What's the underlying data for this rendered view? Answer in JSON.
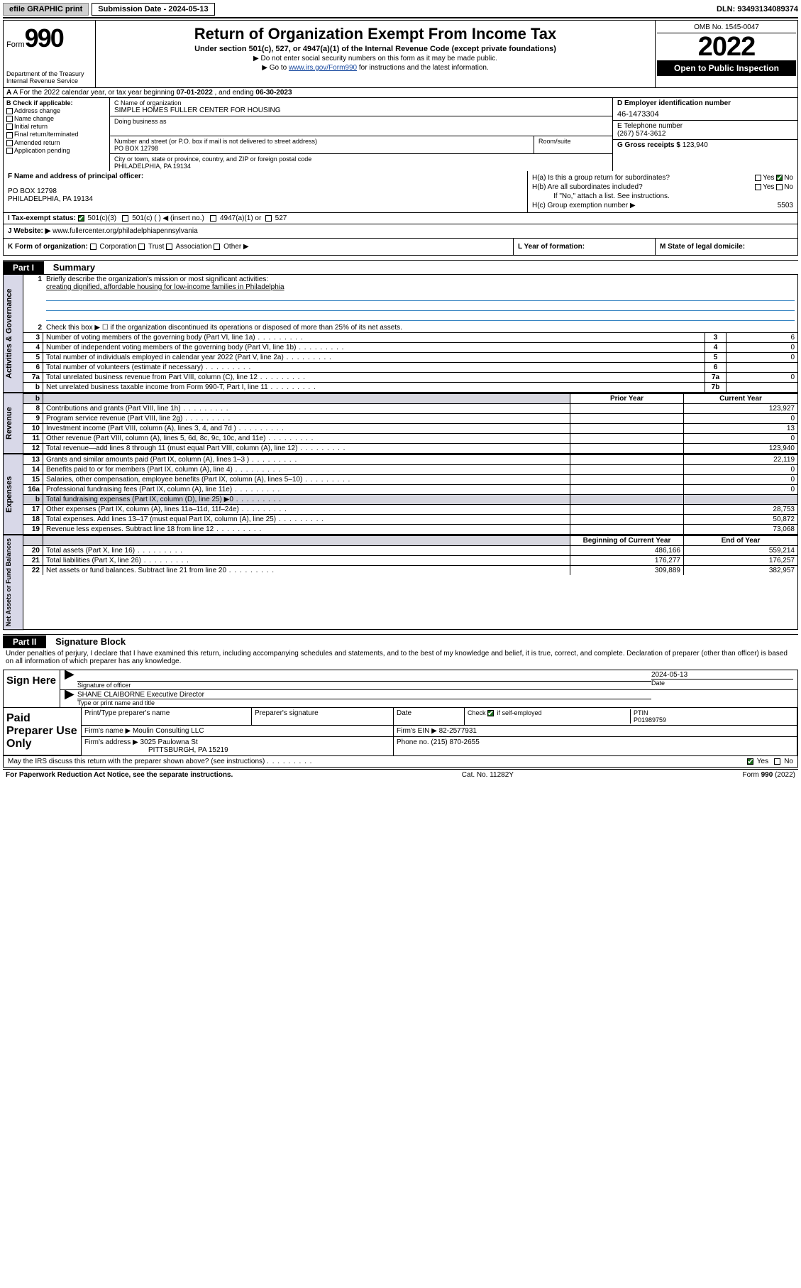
{
  "topbar": {
    "efile": "efile GRAPHIC print",
    "subdate_label": "Submission Date - ",
    "subdate": "2024-05-13",
    "dln_label": "DLN: ",
    "dln": "93493134089374"
  },
  "header": {
    "form_word": "Form",
    "form_num": "990",
    "dept": "Department of the Treasury",
    "irs": "Internal Revenue Service",
    "title": "Return of Organization Exempt From Income Tax",
    "sub": "Under section 501(c), 527, or 4947(a)(1) of the Internal Revenue Code (except private foundations)",
    "note1": "▶ Do not enter social security numbers on this form as it may be made public.",
    "note2_pre": "▶ Go to ",
    "note2_link": "www.irs.gov/Form990",
    "note2_post": " for instructions and the latest information.",
    "omb": "OMB No. 1545-0047",
    "year": "2022",
    "open": "Open to Public Inspection"
  },
  "rowA": {
    "text_pre": "A For the 2022 calendar year, or tax year beginning ",
    "begin": "07-01-2022",
    "mid": "   , and ending ",
    "end": "06-30-2023"
  },
  "colB": {
    "title": "B Check if applicable:",
    "items": [
      "Address change",
      "Name change",
      "Initial return",
      "Final return/terminated",
      "Amended return",
      "Application pending"
    ]
  },
  "colC": {
    "name_label": "C Name of organization",
    "name": "SIMPLE HOMES FULLER CENTER FOR HOUSING",
    "dba_label": "Doing business as",
    "street_label": "Number and street (or P.O. box if mail is not delivered to street address)",
    "street": "PO BOX 12798",
    "room_label": "Room/suite",
    "city_label": "City or town, state or province, country, and ZIP or foreign postal code",
    "city": "PHILADELPHIA, PA  19134"
  },
  "colD": {
    "ein_label": "D Employer identification number",
    "ein": "46-1473304",
    "tel_label": "E Telephone number",
    "tel": "(267) 574-3612",
    "gross_label": "G Gross receipts $ ",
    "gross": "123,940"
  },
  "rowF": {
    "label": "F Name and address of principal officer:",
    "addr1": "PO BOX 12798",
    "addr2": "PHILADELPHIA, PA  19134"
  },
  "rowH": {
    "ha": "H(a)  Is this a group return for subordinates?",
    "hb": "H(b)  Are all subordinates included?",
    "hb_note": "If \"No,\" attach a list. See instructions.",
    "hc": "H(c)  Group exemption number ▶",
    "hc_val": "5503",
    "yes": "Yes",
    "no": "No"
  },
  "rowI": {
    "label": "I    Tax-exempt status:",
    "opt1": "501(c)(3)",
    "opt2": "501(c) (   ) ◀ (insert no.)",
    "opt3": "4947(a)(1) or",
    "opt4": "527"
  },
  "rowJ": {
    "label": "J    Website: ▶",
    "url": "www.fullercenter.org/philadelphiapennsylvania"
  },
  "rowK": {
    "label": "K Form of organization:",
    "opts": [
      "Corporation",
      "Trust",
      "Association",
      "Other ▶"
    ]
  },
  "rowL": {
    "label": "L Year of formation:"
  },
  "rowM": {
    "label": "M State of legal domicile:"
  },
  "partI": {
    "hdr": "Part I",
    "title": "Summary",
    "l1_label": "Briefly describe the organization's mission or most significant activities:",
    "l1_text": "creating dignified, affordable housing for low-income families in Philadelphia",
    "l2": "Check this box ▶ ☐  if the organization discontinued its operations or disposed of more than 25% of its net assets.",
    "lines_gov": [
      {
        "n": "3",
        "d": "Number of voting members of the governing body (Part VI, line 1a)",
        "box": "3",
        "v": "6"
      },
      {
        "n": "4",
        "d": "Number of independent voting members of the governing body (Part VI, line 1b)",
        "box": "4",
        "v": "0"
      },
      {
        "n": "5",
        "d": "Total number of individuals employed in calendar year 2022 (Part V, line 2a)",
        "box": "5",
        "v": "0"
      },
      {
        "n": "6",
        "d": "Total number of volunteers (estimate if necessary)",
        "box": "6",
        "v": ""
      },
      {
        "n": "7a",
        "d": "Total unrelated business revenue from Part VIII, column (C), line 12",
        "box": "7a",
        "v": "0"
      },
      {
        "n": "b",
        "d": "Net unrelated business taxable income from Form 990-T, Part I, line 11",
        "box": "7b",
        "v": ""
      }
    ],
    "col_prior": "Prior Year",
    "col_curr": "Current Year",
    "revenue": [
      {
        "n": "8",
        "d": "Contributions and grants (Part VIII, line 1h)",
        "p": "",
        "c": "123,927"
      },
      {
        "n": "9",
        "d": "Program service revenue (Part VIII, line 2g)",
        "p": "",
        "c": "0"
      },
      {
        "n": "10",
        "d": "Investment income (Part VIII, column (A), lines 3, 4, and 7d )",
        "p": "",
        "c": "13"
      },
      {
        "n": "11",
        "d": "Other revenue (Part VIII, column (A), lines 5, 6d, 8c, 9c, 10c, and 11e)",
        "p": "",
        "c": "0"
      },
      {
        "n": "12",
        "d": "Total revenue—add lines 8 through 11 (must equal Part VIII, column (A), line 12)",
        "p": "",
        "c": "123,940"
      }
    ],
    "expenses": [
      {
        "n": "13",
        "d": "Grants and similar amounts paid (Part IX, column (A), lines 1–3 )",
        "p": "",
        "c": "22,119"
      },
      {
        "n": "14",
        "d": "Benefits paid to or for members (Part IX, column (A), line 4)",
        "p": "",
        "c": "0"
      },
      {
        "n": "15",
        "d": "Salaries, other compensation, employee benefits (Part IX, column (A), lines 5–10)",
        "p": "",
        "c": "0"
      },
      {
        "n": "16a",
        "d": "Professional fundraising fees (Part IX, column (A), line 11e)",
        "p": "",
        "c": "0"
      },
      {
        "n": "b",
        "d": "Total fundraising expenses (Part IX, column (D), line 25) ▶0",
        "p": "—",
        "c": "—"
      },
      {
        "n": "17",
        "d": "Other expenses (Part IX, column (A), lines 11a–11d, 11f–24e)",
        "p": "",
        "c": "28,753"
      },
      {
        "n": "18",
        "d": "Total expenses. Add lines 13–17 (must equal Part IX, column (A), line 25)",
        "p": "",
        "c": "50,872"
      },
      {
        "n": "19",
        "d": "Revenue less expenses. Subtract line 18 from line 12",
        "p": "",
        "c": "73,068"
      }
    ],
    "col_begin": "Beginning of Current Year",
    "col_end": "End of Year",
    "netassets": [
      {
        "n": "20",
        "d": "Total assets (Part X, line 16)",
        "p": "486,166",
        "c": "559,214"
      },
      {
        "n": "21",
        "d": "Total liabilities (Part X, line 26)",
        "p": "176,277",
        "c": "176,257"
      },
      {
        "n": "22",
        "d": "Net assets or fund balances. Subtract line 21 from line 20",
        "p": "309,889",
        "c": "382,957"
      }
    ]
  },
  "partII": {
    "hdr": "Part II",
    "title": "Signature Block",
    "decl": "Under penalties of perjury, I declare that I have examined this return, including accompanying schedules and statements, and to the best of my knowledge and belief, it is true, correct, and complete. Declaration of preparer (other than officer) is based on all information of which preparer has any knowledge.",
    "sign_here": "Sign Here",
    "sig_officer": "Signature of officer",
    "sig_date_label": "Date",
    "sig_date": "2024-05-13",
    "officer_name": "SHANE CLAIBORNE  Executive Director",
    "officer_sub": "Type or print name and title",
    "paid": "Paid Preparer Use Only",
    "p_name_label": "Print/Type preparer's name",
    "p_sig_label": "Preparer's signature",
    "p_date_label": "Date",
    "p_check": "Check ☑ if self-employed",
    "p_ptin_label": "PTIN",
    "p_ptin": "P01989759",
    "firm_name_label": "Firm's name    ▶",
    "firm_name": "Moulin Consulting LLC",
    "firm_ein_label": "Firm's EIN ▶",
    "firm_ein": "82-2577931",
    "firm_addr_label": "Firm's address ▶",
    "firm_addr1": "3025 Paulowna St",
    "firm_addr2": "PITTSBURGH, PA  15219",
    "firm_phone_label": "Phone no.",
    "firm_phone": "(215) 870-2655",
    "discuss": "May the IRS discuss this return with the preparer shown above? (see instructions)",
    "yes": "Yes",
    "no": "No"
  },
  "footer": {
    "left": "For Paperwork Reduction Act Notice, see the separate instructions.",
    "mid": "Cat. No. 11282Y",
    "right_pre": "Form ",
    "right_form": "990",
    "right_post": " (2022)"
  },
  "vtabs": {
    "gov": "Activities & Governance",
    "rev": "Revenue",
    "exp": "Expenses",
    "net": "Net Assets or Fund Balances"
  }
}
